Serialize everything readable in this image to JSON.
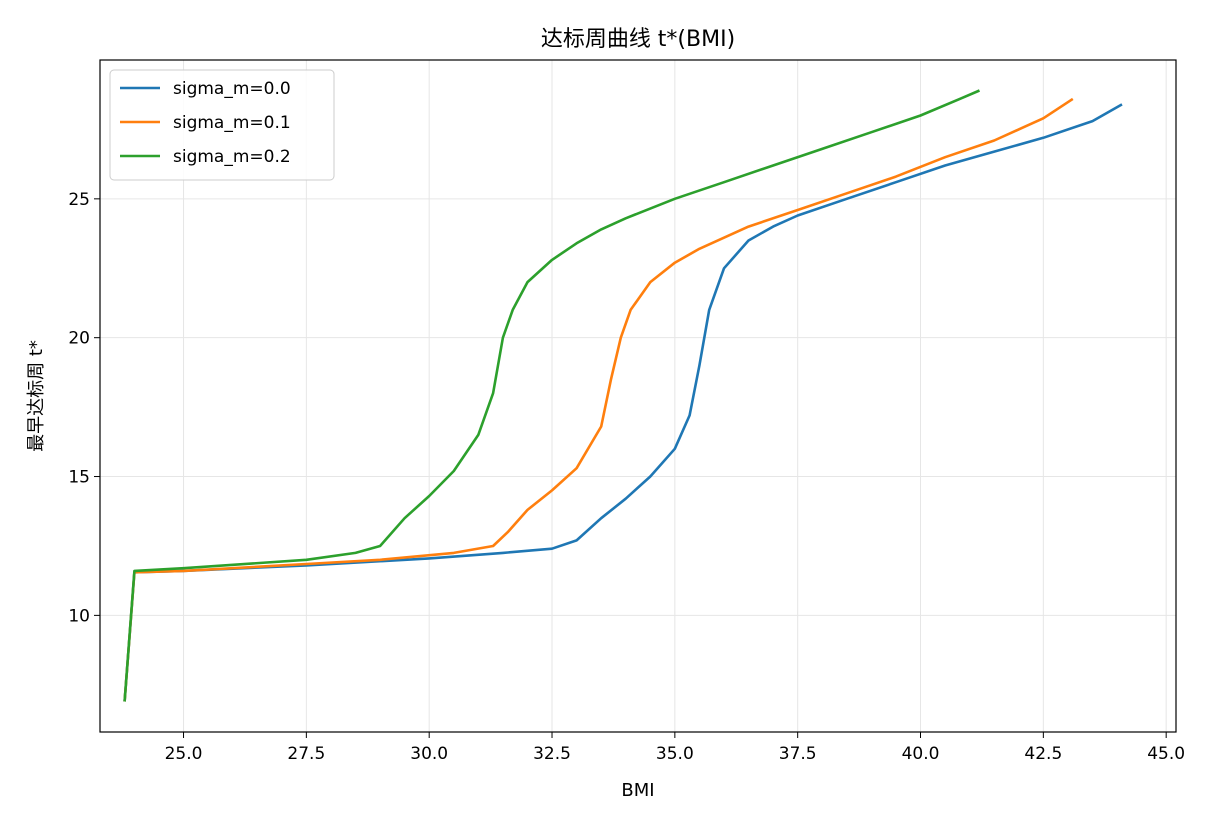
{
  "chart_data": {
    "type": "line",
    "title": "达标周曲线  t*(BMI)",
    "xlabel": "BMI",
    "ylabel": "最早达标周 t*",
    "xlim": [
      23.3,
      45.2
    ],
    "ylim": [
      5.8,
      30.0
    ],
    "xticks": [
      25.0,
      27.5,
      30.0,
      32.5,
      35.0,
      37.5,
      40.0,
      42.5,
      45.0
    ],
    "xtick_labels": [
      "25.0",
      "27.5",
      "30.0",
      "32.5",
      "35.0",
      "37.5",
      "40.0",
      "42.5",
      "45.0"
    ],
    "yticks": [
      10,
      15,
      20,
      25
    ],
    "ytick_labels": [
      "10",
      "15",
      "20",
      "25"
    ],
    "grid": true,
    "legend_position": "top-left",
    "series": [
      {
        "name": "sigma_m=0.0",
        "color": "#1f77b4",
        "x": [
          23.8,
          24.0,
          25.0,
          27.5,
          30.0,
          31.5,
          32.5,
          33.0,
          33.5,
          34.0,
          34.5,
          35.0,
          35.3,
          35.5,
          35.7,
          36.0,
          36.5,
          37.0,
          37.5,
          38.5,
          39.5,
          40.5,
          41.5,
          42.5,
          43.5,
          44.1
        ],
        "y": [
          6.9,
          11.55,
          11.6,
          11.8,
          12.05,
          12.25,
          12.4,
          12.7,
          13.5,
          14.2,
          15.0,
          16.0,
          17.2,
          19.0,
          21.0,
          22.5,
          23.5,
          24.0,
          24.4,
          25.0,
          25.6,
          26.2,
          26.7,
          27.2,
          27.8,
          28.4
        ]
      },
      {
        "name": "sigma_m=0.1",
        "color": "#ff7f0e",
        "x": [
          23.8,
          24.0,
          25.0,
          27.5,
          29.0,
          30.5,
          31.3,
          31.6,
          32.0,
          32.5,
          33.0,
          33.5,
          33.7,
          33.9,
          34.1,
          34.5,
          35.0,
          35.5,
          36.5,
          37.5,
          38.5,
          39.5,
          40.5,
          41.5,
          42.5,
          43.1
        ],
        "y": [
          6.9,
          11.55,
          11.6,
          11.85,
          12.0,
          12.25,
          12.5,
          13.0,
          13.8,
          14.5,
          15.3,
          16.8,
          18.5,
          20.0,
          21.0,
          22.0,
          22.7,
          23.2,
          24.0,
          24.6,
          25.2,
          25.8,
          26.5,
          27.1,
          27.9,
          28.6
        ]
      },
      {
        "name": "sigma_m=0.2",
        "color": "#2ca02c",
        "x": [
          23.8,
          24.0,
          25.0,
          27.5,
          28.5,
          29.0,
          29.5,
          30.0,
          30.5,
          31.0,
          31.3,
          31.5,
          31.7,
          32.0,
          32.5,
          33.0,
          33.5,
          34.0,
          35.0,
          36.0,
          37.0,
          38.0,
          39.0,
          40.0,
          40.8,
          41.2
        ],
        "y": [
          6.9,
          11.6,
          11.7,
          12.0,
          12.25,
          12.5,
          13.5,
          14.3,
          15.2,
          16.5,
          18.0,
          20.0,
          21.0,
          22.0,
          22.8,
          23.4,
          23.9,
          24.3,
          25.0,
          25.6,
          26.2,
          26.8,
          27.4,
          28.0,
          28.6,
          28.9
        ]
      }
    ]
  }
}
